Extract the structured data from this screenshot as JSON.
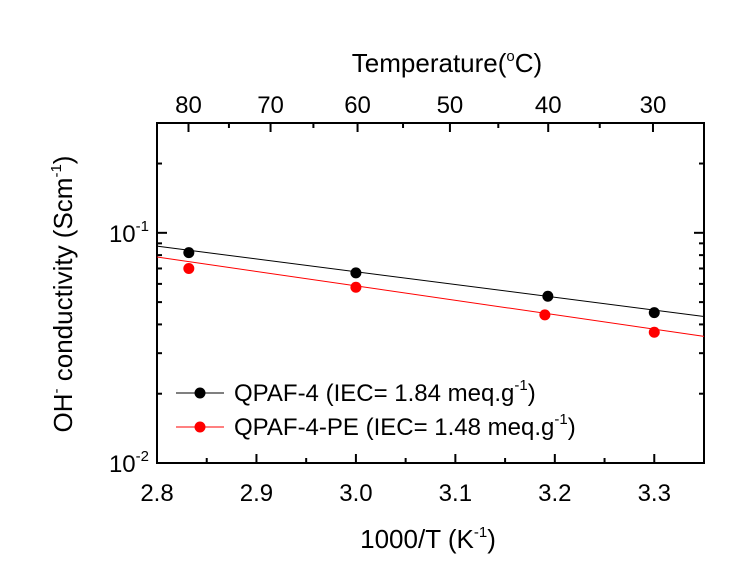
{
  "chart_data": {
    "type": "scatter",
    "title": "",
    "xlabel": "1000/T",
    "xlabel_unit_base": "K",
    "xlabel_unit_exp": "-1",
    "ylabel_main": "OH",
    "ylabel_super": "-",
    "ylabel_rest": " conductivity (Scm",
    "ylabel_exp": "-1",
    "ylabel_close": ")",
    "top_axis_label": "Temperature(",
    "top_axis_deg": "o",
    "top_axis_unit": "C)",
    "x_range": [
      2.8,
      3.35
    ],
    "y_range": [
      0.01,
      0.3
    ],
    "y_scale": "log",
    "x_ticks": [
      "2.8",
      "2.9",
      "3.0",
      "3.1",
      "3.2",
      "3.3"
    ],
    "x_tick_values": [
      2.8,
      2.9,
      3.0,
      3.1,
      3.2,
      3.3
    ],
    "y_tick_labels": [
      {
        "value": 0.1,
        "base": "10",
        "exp": "-1"
      },
      {
        "value": 0.01,
        "base": "10",
        "exp": "-2"
      }
    ],
    "top_ticks": [
      {
        "label": "80",
        "celsius": 80
      },
      {
        "label": "70",
        "celsius": 70
      },
      {
        "label": "60",
        "celsius": 60
      },
      {
        "label": "50",
        "celsius": 50
      },
      {
        "label": "40",
        "celsius": 40
      },
      {
        "label": "30",
        "celsius": 30
      }
    ],
    "legend_position": "bottom-left",
    "series": [
      {
        "name_main": "QPAF-4 (IEC= 1.84 meq.g",
        "name_exp": "-1",
        "name_close": ")",
        "color": "#000000",
        "x": [
          2.832,
          3.0,
          3.193,
          3.3
        ],
        "y": [
          0.082,
          0.067,
          0.053,
          0.045
        ],
        "fit": {
          "x0": 2.8,
          "y0": 0.0875,
          "x1": 3.35,
          "y1": 0.0433
        }
      },
      {
        "name_main": "QPAF-4-PE (IEC= 1.48 meq.g",
        "name_exp": "-1",
        "name_close": ")",
        "color": "#ff0000",
        "x": [
          2.832,
          3.0,
          3.19,
          3.3
        ],
        "y": [
          0.07,
          0.058,
          0.044,
          0.037
        ],
        "fit": {
          "x0": 2.8,
          "y0": 0.0785,
          "x1": 3.35,
          "y1": 0.0355
        }
      }
    ]
  }
}
